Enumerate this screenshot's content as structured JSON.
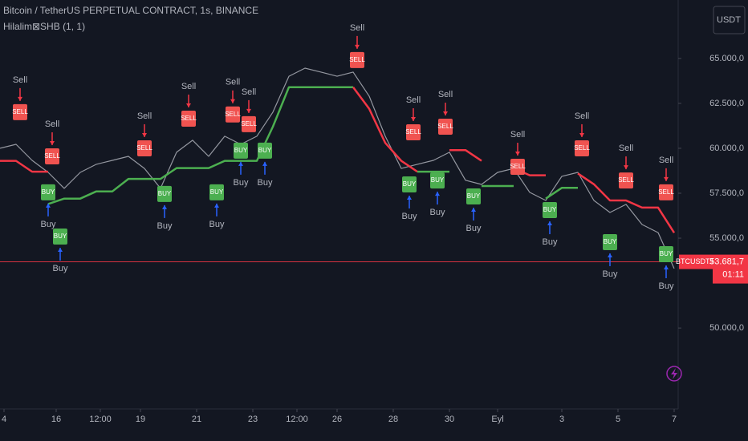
{
  "chart_data": {
    "type": "line",
    "title": "Bitcoin / TetherUS PERPETUAL CONTRACT, 1s, BINANCE",
    "indicator": "Hilalim⊠SHB (1, 1)",
    "currency_button": "USDT",
    "xlim": [
      0,
      169
    ],
    "ylim": [
      45500,
      68250
    ],
    "xticks": [
      {
        "value": 1,
        "label": "4"
      },
      {
        "value": 14,
        "label": "16"
      },
      {
        "value": 25,
        "label": "12:00"
      },
      {
        "value": 35,
        "label": "19"
      },
      {
        "value": 49,
        "label": "21"
      },
      {
        "value": 63,
        "label": "23"
      },
      {
        "value": 74,
        "label": "12:00"
      },
      {
        "value": 84,
        "label": "26"
      },
      {
        "value": 98,
        "label": "28"
      },
      {
        "value": 112,
        "label": "30"
      },
      {
        "value": 124,
        "label": "Eyl"
      },
      {
        "value": 140,
        "label": "3"
      },
      {
        "value": 154,
        "label": "5"
      },
      {
        "value": 168,
        "label": "7"
      }
    ],
    "yticks": [
      {
        "value": 50000,
        "label": "50.000,0"
      },
      {
        "value": 55000,
        "label": "55.000,0"
      },
      {
        "value": 57500,
        "label": "57.500,0"
      },
      {
        "value": 60000,
        "label": "60.000,0"
      },
      {
        "value": 62500,
        "label": "62.500,0"
      },
      {
        "value": 65000,
        "label": "65.000,0"
      }
    ],
    "price": {
      "color": "#9598a1",
      "x": [
        0,
        4,
        8,
        12,
        16,
        20,
        24,
        28,
        32,
        36,
        40,
        44,
        48,
        52,
        56,
        60,
        64,
        68,
        72,
        76,
        80,
        84,
        88,
        92,
        96,
        100,
        104,
        108,
        112,
        116,
        120,
        124,
        128,
        132,
        136,
        140,
        144,
        148,
        152,
        156,
        160,
        164,
        168
      ],
      "values": [
        60000,
        60220,
        59330,
        58660,
        57770,
        58660,
        59110,
        59330,
        59550,
        58880,
        57770,
        59780,
        60450,
        59550,
        60670,
        60220,
        60670,
        62010,
        64010,
        64460,
        64240,
        64010,
        64240,
        62900,
        60670,
        58880,
        59110,
        59330,
        59780,
        58220,
        57990,
        58660,
        58880,
        57550,
        57100,
        58440,
        58660,
        57100,
        56430,
        56880,
        55760,
        55310,
        53310
      ]
    },
    "trail": [
      {
        "color": "#f23645",
        "x": [
          0,
          4,
          8,
          12
        ],
        "values": [
          59300,
          59300,
          58700,
          58700
        ]
      },
      {
        "color": "#4caf50",
        "x": [
          12,
          16,
          20,
          24,
          28,
          32,
          36,
          40,
          44,
          48,
          52,
          56,
          60,
          64,
          68,
          72,
          76,
          80,
          84,
          88
        ],
        "values": [
          56900,
          57200,
          57200,
          57600,
          57600,
          58300,
          58300,
          58300,
          58900,
          58900,
          58900,
          59300,
          59300,
          59300,
          61200,
          63400,
          63400,
          63400,
          63400,
          63400
        ]
      },
      {
        "color": "#f23645",
        "x": [
          88,
          92,
          96,
          100,
          104
        ],
        "values": [
          63400,
          62200,
          60300,
          59300,
          58700
        ]
      },
      {
        "color": "#4caf50",
        "x": [
          104,
          108,
          112
        ],
        "values": [
          58700,
          58700,
          58700
        ]
      },
      {
        "color": "#f23645",
        "x": [
          112,
          116,
          120
        ],
        "values": [
          59900,
          59900,
          59300
        ]
      },
      {
        "color": "#4caf50",
        "x": [
          120,
          124,
          128
        ],
        "values": [
          57900,
          57900,
          57900
        ]
      },
      {
        "color": "#f23645",
        "x": [
          128,
          132,
          136
        ],
        "values": [
          58900,
          58500,
          58500
        ]
      },
      {
        "color": "#4caf50",
        "x": [
          136,
          140,
          144
        ],
        "values": [
          57200,
          57800,
          57800
        ]
      },
      {
        "color": "#f23645",
        "x": [
          144,
          148,
          152,
          156,
          160,
          164,
          168
        ],
        "values": [
          58600,
          58000,
          57100,
          57100,
          56700,
          56700,
          55300
        ]
      }
    ],
    "signal_text": {
      "sell": "Sell",
      "buy": "Buy",
      "sell_box": "SELL",
      "buy_box": "BUY"
    },
    "signal_colors": {
      "sell": "#f05350",
      "buy": "#4caf50",
      "arrow_sell": "#f23645",
      "arrow_buy": "#2962ff"
    },
    "signals": [
      {
        "side": "sell",
        "x": 5,
        "price": 62010
      },
      {
        "side": "sell",
        "x": 13,
        "price": 59550
      },
      {
        "side": "sell",
        "x": 36,
        "price": 60000
      },
      {
        "side": "sell",
        "x": 47,
        "price": 61650
      },
      {
        "side": "sell",
        "x": 58,
        "price": 61880
      },
      {
        "side": "sell",
        "x": 62,
        "price": 61340
      },
      {
        "side": "sell",
        "x": 89,
        "price": 64910
      },
      {
        "side": "sell",
        "x": 103,
        "price": 60890
      },
      {
        "side": "sell",
        "x": 111,
        "price": 61200
      },
      {
        "side": "sell",
        "x": 129,
        "price": 58970
      },
      {
        "side": "sell",
        "x": 145,
        "price": 60000
      },
      {
        "side": "sell",
        "x": 156,
        "price": 58210
      },
      {
        "side": "sell",
        "x": 166,
        "price": 57550
      },
      {
        "side": "buy",
        "x": 12,
        "price": 57550
      },
      {
        "side": "buy",
        "x": 15,
        "price": 55090
      },
      {
        "side": "buy",
        "x": 41,
        "price": 57460
      },
      {
        "side": "buy",
        "x": 54,
        "price": 57550
      },
      {
        "side": "buy",
        "x": 60,
        "price": 59870
      },
      {
        "side": "buy",
        "x": 66,
        "price": 59870
      },
      {
        "side": "buy",
        "x": 102,
        "price": 57990
      },
      {
        "side": "buy",
        "x": 109,
        "price": 58210
      },
      {
        "side": "buy",
        "x": 118,
        "price": 57320
      },
      {
        "side": "buy",
        "x": 137,
        "price": 56560
      },
      {
        "side": "buy",
        "x": 152,
        "price": 54780
      },
      {
        "side": "buy",
        "x": 166,
        "price": 54110
      }
    ],
    "last_price": {
      "value": 53681.7,
      "label": "53.681,7",
      "time": "01:11",
      "symbol": "BTCUSDT.P",
      "color": "#f23645"
    }
  }
}
